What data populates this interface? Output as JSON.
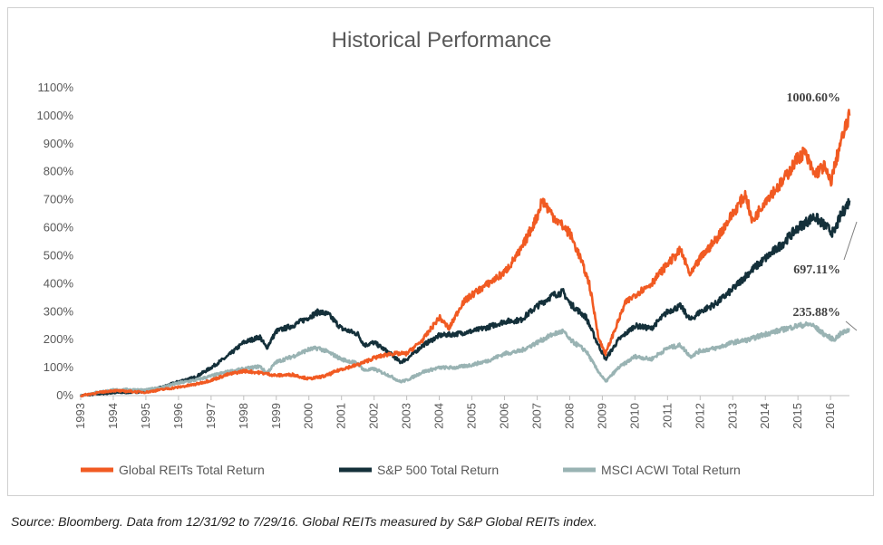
{
  "chart_data": {
    "type": "line",
    "title": "Historical Performance",
    "xlabel": "",
    "ylabel": "",
    "xlim": [
      1993,
      2016.58
    ],
    "ylim": [
      0,
      1100
    ],
    "yticks": [
      "0%",
      "100%",
      "200%",
      "300%",
      "400%",
      "500%",
      "600%",
      "700%",
      "800%",
      "900%",
      "1000%",
      "1100%"
    ],
    "xticks": [
      "1993",
      "1994",
      "1995",
      "1996",
      "1997",
      "1998",
      "1999",
      "2000",
      "2001",
      "2002",
      "2003",
      "2004",
      "2005",
      "2006",
      "2007",
      "2008",
      "2009",
      "2010",
      "2011",
      "2012",
      "2013",
      "2014",
      "2015",
      "2016"
    ],
    "grid": false,
    "legend_position": "bottom",
    "series": [
      {
        "name": "Global REITs Total Return",
        "color": "#f15a22",
        "points": [
          [
            1993,
            0
          ],
          [
            1993.5,
            10
          ],
          [
            1994,
            18
          ],
          [
            1994.5,
            15
          ],
          [
            1995,
            12
          ],
          [
            1995.5,
            22
          ],
          [
            1996,
            30
          ],
          [
            1996.5,
            40
          ],
          [
            1997,
            55
          ],
          [
            1997.5,
            75
          ],
          [
            1998,
            88
          ],
          [
            1998.5,
            82
          ],
          [
            1999,
            72
          ],
          [
            1999.5,
            75
          ],
          [
            2000,
            60
          ],
          [
            2000.5,
            70
          ],
          [
            2001,
            95
          ],
          [
            2001.5,
            110
          ],
          [
            2002,
            135
          ],
          [
            2002.5,
            150
          ],
          [
            2003,
            150
          ],
          [
            2003.5,
            200
          ],
          [
            2004,
            280
          ],
          [
            2004.3,
            240
          ],
          [
            2004.7,
            330
          ],
          [
            2005,
            360
          ],
          [
            2005.5,
            400
          ],
          [
            2006,
            440
          ],
          [
            2006.5,
            520
          ],
          [
            2007,
            640
          ],
          [
            2007.15,
            700
          ],
          [
            2007.5,
            640
          ],
          [
            2008,
            580
          ],
          [
            2008.3,
            500
          ],
          [
            2008.6,
            400
          ],
          [
            2008.9,
            200
          ],
          [
            2009.1,
            150
          ],
          [
            2009.3,
            210
          ],
          [
            2009.7,
            330
          ],
          [
            2010,
            360
          ],
          [
            2010.5,
            400
          ],
          [
            2011,
            470
          ],
          [
            2011.4,
            520
          ],
          [
            2011.7,
            430
          ],
          [
            2012,
            490
          ],
          [
            2012.5,
            560
          ],
          [
            2013,
            650
          ],
          [
            2013.4,
            720
          ],
          [
            2013.6,
            620
          ],
          [
            2014,
            700
          ],
          [
            2014.5,
            760
          ],
          [
            2015,
            850
          ],
          [
            2015.2,
            870
          ],
          [
            2015.5,
            790
          ],
          [
            2015.8,
            820
          ],
          [
            2016,
            760
          ],
          [
            2016.3,
            900
          ],
          [
            2016.58,
            1000.6
          ]
        ]
      },
      {
        "name": "S&P 500 Total Return",
        "color": "#14303a",
        "points": [
          [
            1993,
            0
          ],
          [
            1993.5,
            6
          ],
          [
            1994,
            10
          ],
          [
            1994.5,
            12
          ],
          [
            1995,
            14
          ],
          [
            1995.5,
            30
          ],
          [
            1996,
            50
          ],
          [
            1996.5,
            65
          ],
          [
            1997,
            100
          ],
          [
            1997.5,
            140
          ],
          [
            1998,
            190
          ],
          [
            1998.5,
            210
          ],
          [
            1998.7,
            170
          ],
          [
            1999,
            230
          ],
          [
            1999.5,
            250
          ],
          [
            2000,
            280
          ],
          [
            2000.3,
            300
          ],
          [
            2000.6,
            290
          ],
          [
            2001,
            240
          ],
          [
            2001.5,
            220
          ],
          [
            2001.7,
            180
          ],
          [
            2002,
            190
          ],
          [
            2002.5,
            150
          ],
          [
            2002.8,
            120
          ],
          [
            2003,
            130
          ],
          [
            2003.5,
            180
          ],
          [
            2004,
            215
          ],
          [
            2004.5,
            220
          ],
          [
            2005,
            230
          ],
          [
            2005.5,
            245
          ],
          [
            2006,
            265
          ],
          [
            2006.5,
            270
          ],
          [
            2007,
            320
          ],
          [
            2007.5,
            360
          ],
          [
            2007.8,
            370
          ],
          [
            2008,
            330
          ],
          [
            2008.5,
            280
          ],
          [
            2008.8,
            200
          ],
          [
            2009.1,
            130
          ],
          [
            2009.5,
            200
          ],
          [
            2010,
            250
          ],
          [
            2010.5,
            240
          ],
          [
            2011,
            300
          ],
          [
            2011.4,
            320
          ],
          [
            2011.7,
            270
          ],
          [
            2012,
            300
          ],
          [
            2012.5,
            330
          ],
          [
            2013,
            380
          ],
          [
            2013.5,
            440
          ],
          [
            2014,
            490
          ],
          [
            2014.5,
            540
          ],
          [
            2015,
            600
          ],
          [
            2015.5,
            640
          ],
          [
            2015.8,
            610
          ],
          [
            2016.1,
            580
          ],
          [
            2016.3,
            640
          ],
          [
            2016.58,
            697.11
          ]
        ]
      },
      {
        "name": "MSCI ACWI Total Return",
        "color": "#99b3b3",
        "points": [
          [
            1993,
            0
          ],
          [
            1993.5,
            12
          ],
          [
            1994,
            20
          ],
          [
            1994.5,
            22
          ],
          [
            1995,
            20
          ],
          [
            1995.5,
            30
          ],
          [
            1996,
            45
          ],
          [
            1996.5,
            55
          ],
          [
            1997,
            70
          ],
          [
            1997.5,
            85
          ],
          [
            1998,
            95
          ],
          [
            1998.5,
            105
          ],
          [
            1998.7,
            80
          ],
          [
            1999,
            120
          ],
          [
            1999.5,
            140
          ],
          [
            2000,
            165
          ],
          [
            2000.3,
            170
          ],
          [
            2000.6,
            155
          ],
          [
            2001,
            130
          ],
          [
            2001.5,
            115
          ],
          [
            2001.7,
            90
          ],
          [
            2002,
            95
          ],
          [
            2002.5,
            70
          ],
          [
            2002.8,
            50
          ],
          [
            2003,
            55
          ],
          [
            2003.5,
            85
          ],
          [
            2004,
            100
          ],
          [
            2004.5,
            100
          ],
          [
            2005,
            110
          ],
          [
            2005.5,
            125
          ],
          [
            2006,
            150
          ],
          [
            2006.5,
            160
          ],
          [
            2007,
            190
          ],
          [
            2007.5,
            220
          ],
          [
            2007.8,
            230
          ],
          [
            2008,
            200
          ],
          [
            2008.5,
            160
          ],
          [
            2008.8,
            100
          ],
          [
            2009.1,
            50
          ],
          [
            2009.5,
            100
          ],
          [
            2010,
            140
          ],
          [
            2010.5,
            130
          ],
          [
            2011,
            170
          ],
          [
            2011.4,
            180
          ],
          [
            2011.7,
            140
          ],
          [
            2012,
            160
          ],
          [
            2012.5,
            170
          ],
          [
            2013,
            190
          ],
          [
            2013.5,
            200
          ],
          [
            2014,
            220
          ],
          [
            2014.5,
            235
          ],
          [
            2015,
            250
          ],
          [
            2015.4,
            255
          ],
          [
            2015.8,
            220
          ],
          [
            2016.1,
            200
          ],
          [
            2016.3,
            220
          ],
          [
            2016.58,
            235.88
          ]
        ]
      }
    ],
    "annotations": [
      {
        "text": "1000.60%",
        "series": 0
      },
      {
        "text": "697.11%",
        "series": 1
      },
      {
        "text": "235.88%",
        "series": 2
      }
    ]
  },
  "footnote": "Source: Bloomberg. Data from 12/31/92 to 7/29/16.  Global REITs measured by S&P Global REITs index."
}
